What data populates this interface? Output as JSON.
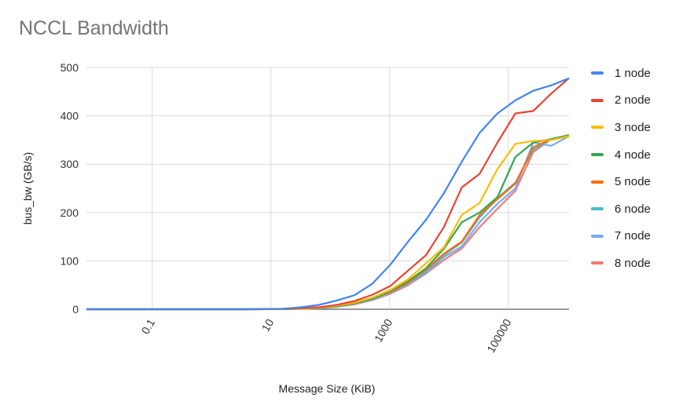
{
  "chart_data": {
    "type": "line",
    "title": "NCCL Bandwidth",
    "xlabel": "Message Size (KiB)",
    "ylabel": "bus_bw (GB/s)",
    "x_scale": "log",
    "xlim": [
      0.0078125,
      1048576
    ],
    "ylim": [
      0,
      500
    ],
    "x_ticks": [
      "0.1",
      "10",
      "1000",
      "100000"
    ],
    "x_tick_values": [
      0.1,
      10,
      1000,
      100000
    ],
    "y_ticks": [
      "0",
      "100",
      "200",
      "300",
      "400",
      "500"
    ],
    "y_tick_values": [
      0,
      100,
      200,
      300,
      400,
      500
    ],
    "grid": true,
    "legend_position": "right",
    "x": [
      0.0078125,
      0.015625,
      0.03125,
      0.0625,
      0.125,
      0.25,
      0.5,
      1,
      2,
      4,
      8,
      16,
      32,
      64,
      128,
      256,
      512,
      1024,
      2048,
      4096,
      8192,
      16384,
      32768,
      65536,
      131072,
      262144,
      524288,
      1048576
    ],
    "series": [
      {
        "name": "1 node",
        "color": "#4285F4",
        "values": [
          0,
          0,
          0,
          0,
          0,
          0,
          0,
          0,
          0,
          0,
          0.5,
          1,
          4,
          9,
          18,
          29,
          53,
          92,
          140,
          185,
          240,
          305,
          365,
          405,
          432,
          452,
          463,
          478
        ]
      },
      {
        "name": "2 node",
        "color": "#EA4335",
        "values": [
          0,
          0,
          0,
          0,
          0,
          0,
          0,
          0,
          0,
          0,
          0.2,
          0.5,
          2,
          4,
          9,
          17,
          30,
          48,
          80,
          112,
          170,
          252,
          280,
          345,
          405,
          410,
          446,
          478
        ]
      },
      {
        "name": "3 node",
        "color": "#FBBC04",
        "values": [
          0,
          0,
          0,
          0,
          0,
          0,
          0,
          0,
          0,
          0,
          0.1,
          0.3,
          1,
          3,
          7,
          14,
          24,
          40,
          62,
          95,
          128,
          195,
          220,
          290,
          342,
          348,
          350,
          358
        ]
      },
      {
        "name": "4 node",
        "color": "#34A853",
        "values": [
          0,
          0,
          0,
          0,
          0,
          0,
          0,
          0,
          0,
          0,
          0.1,
          0.3,
          1,
          3,
          6,
          13,
          22,
          38,
          58,
          85,
          125,
          180,
          200,
          232,
          315,
          345,
          352,
          360
        ]
      },
      {
        "name": "5 node",
        "color": "#FF6D01",
        "values": [
          0,
          0,
          0,
          0,
          0,
          0,
          0,
          0,
          0,
          0,
          0.1,
          0.2,
          1,
          3,
          6,
          12,
          22,
          36,
          55,
          82,
          115,
          140,
          195,
          228,
          260,
          335,
          352,
          360
        ]
      },
      {
        "name": "6 node",
        "color": "#46BDC6",
        "values": [
          0,
          0,
          0,
          0,
          0,
          0,
          0,
          0,
          0,
          0,
          0.1,
          0.2,
          1,
          3,
          5,
          12,
          21,
          35,
          54,
          78,
          112,
          138,
          190,
          230,
          262,
          330,
          352,
          358
        ]
      },
      {
        "name": "7 node",
        "color": "#7BAAF7",
        "values": [
          0,
          0,
          0,
          0,
          0,
          0,
          0,
          0,
          0,
          0,
          0.1,
          0.2,
          1,
          2,
          5,
          11,
          20,
          34,
          52,
          76,
          108,
          130,
          180,
          218,
          250,
          345,
          338,
          358
        ]
      },
      {
        "name": "8 node",
        "color": "#F07B72",
        "values": [
          0,
          0,
          0,
          0,
          0,
          0,
          0,
          0,
          0,
          0,
          0.1,
          0.2,
          1,
          2,
          5,
          10,
          19,
          32,
          50,
          74,
          102,
          126,
          170,
          208,
          245,
          325,
          352,
          360
        ]
      }
    ]
  }
}
